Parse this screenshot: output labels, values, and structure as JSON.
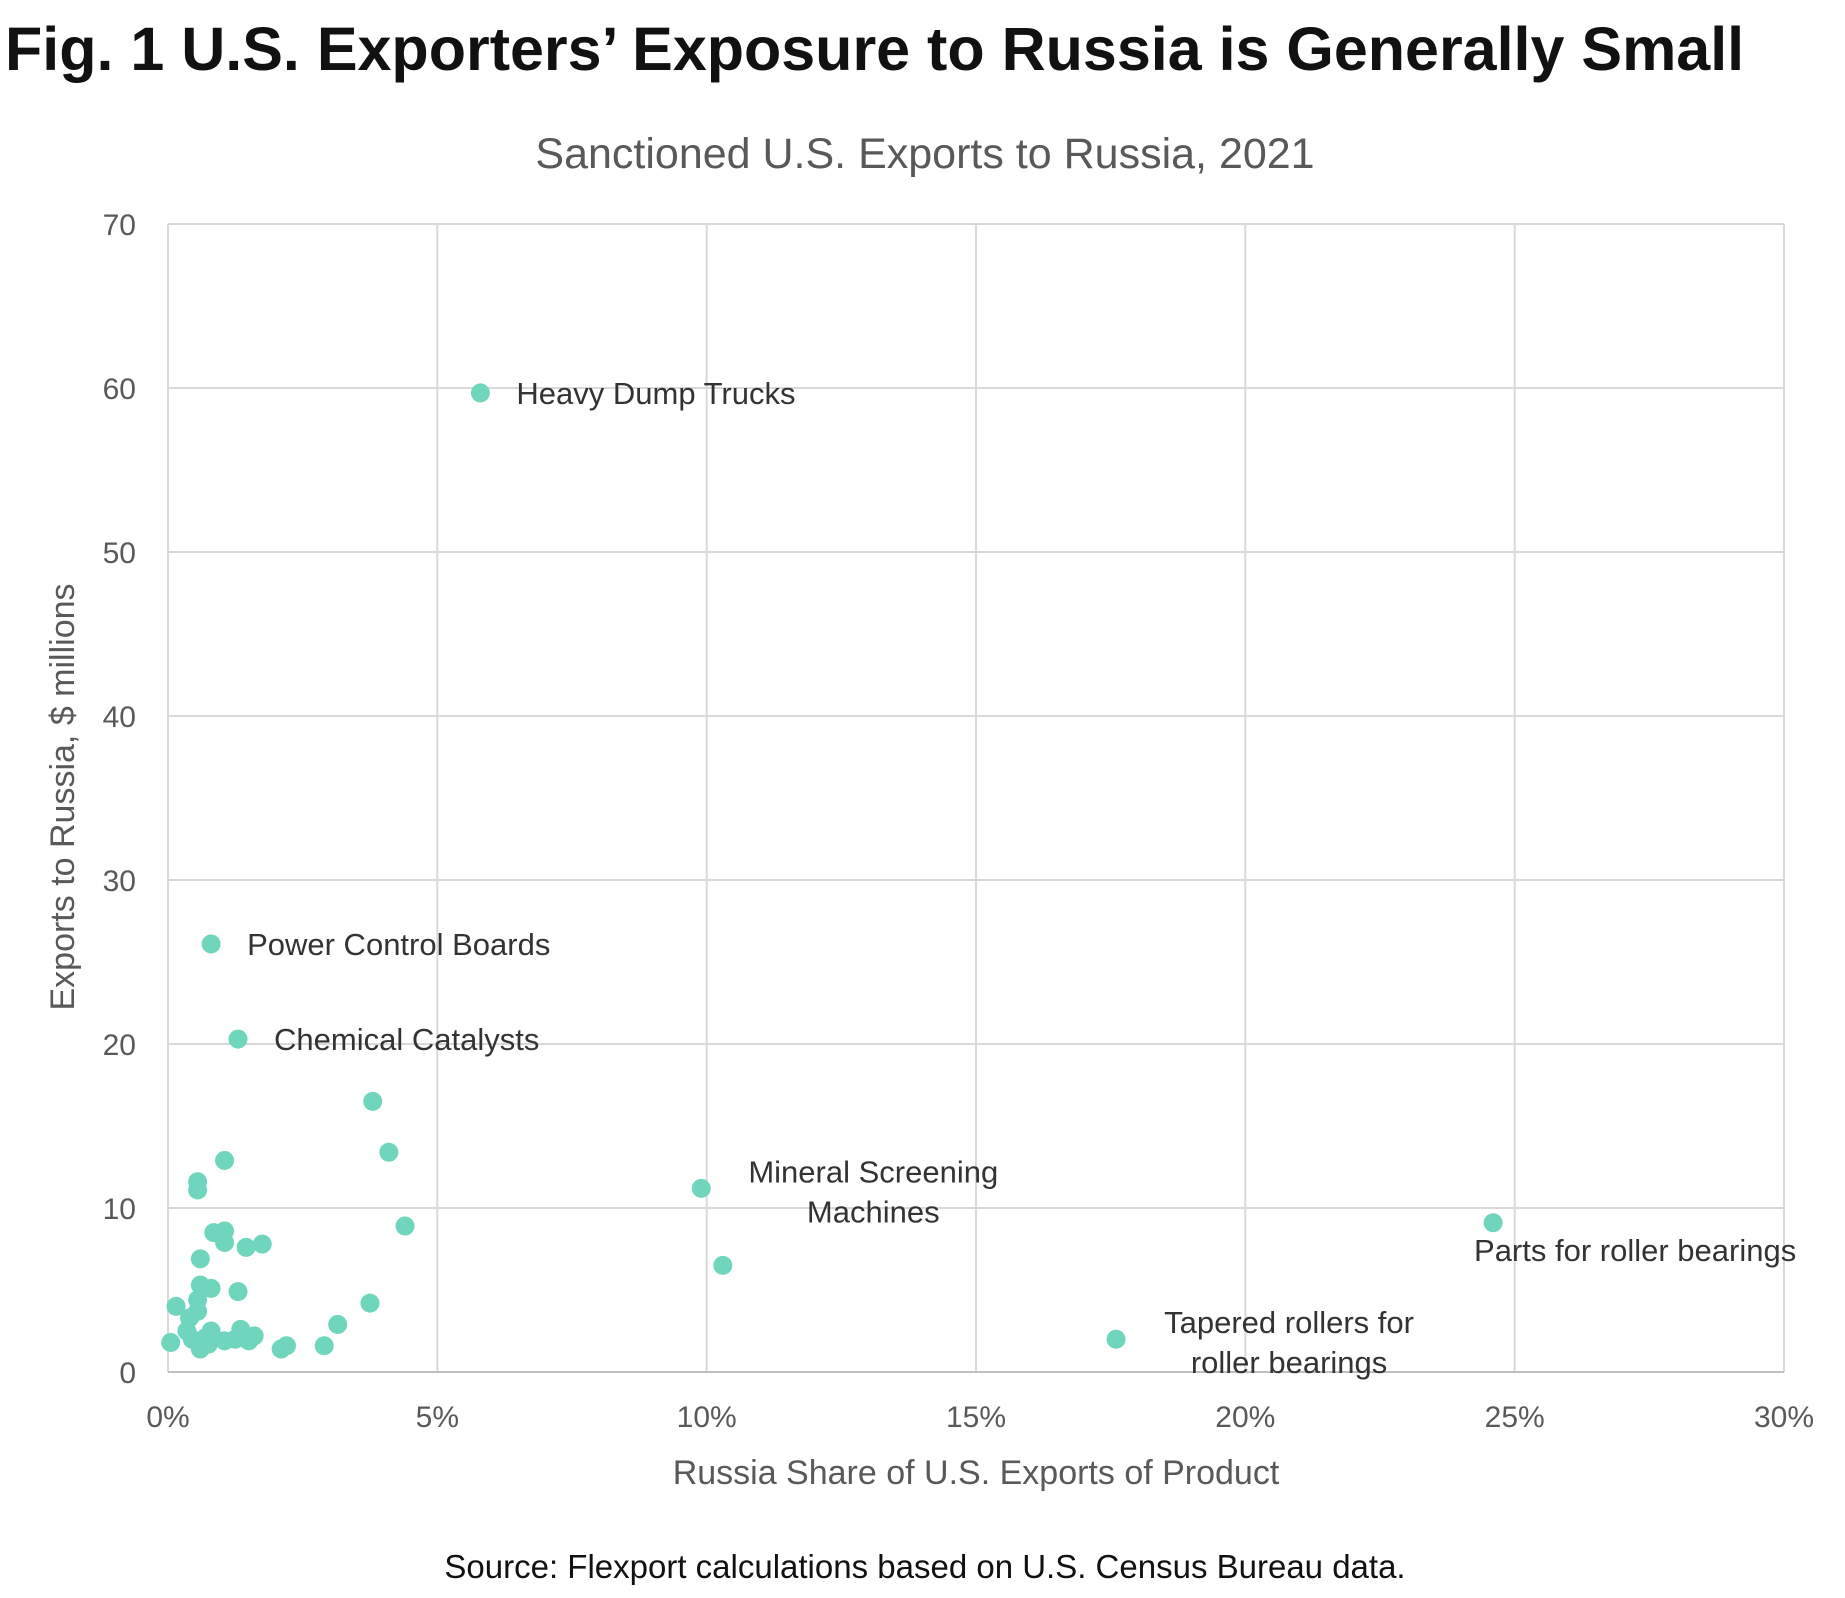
{
  "figure_title": "Fig. 1 U.S. Exporters’ Exposure to Russia is Generally Small",
  "source": "Source: Flexport calculations based on U.S. Census Bureau data.",
  "chart_data": {
    "type": "scatter",
    "title": "Sanctioned U.S. Exports to Russia, 2021",
    "xlabel": "Russia Share of U.S. Exports of Product",
    "ylabel": "Exports to Russia, $ millions",
    "xlim": [
      0,
      30
    ],
    "ylim": [
      0,
      70
    ],
    "x_ticks": [
      0,
      5,
      10,
      15,
      20,
      25,
      30
    ],
    "x_tick_labels": [
      "0%",
      "5%",
      "10%",
      "15%",
      "20%",
      "25%",
      "30%"
    ],
    "y_ticks": [
      0,
      10,
      20,
      30,
      40,
      50,
      60,
      70
    ],
    "y_tick_labels": [
      "0",
      "10",
      "20",
      "30",
      "40",
      "50",
      "60",
      "70"
    ],
    "grid": true,
    "point_color": "#6fd6bd",
    "labeled_points": [
      {
        "label": [
          "Heavy Dump Trucks"
        ],
        "x": 5.8,
        "y": 59.7
      },
      {
        "label": [
          "Power Control Boards"
        ],
        "x": 0.8,
        "y": 26.1
      },
      {
        "label": [
          "Chemical Catalysts"
        ],
        "x": 1.3,
        "y": 20.3
      },
      {
        "label": [
          "Mineral Screening",
          "Machines"
        ],
        "x": 9.9,
        "y": 11.2
      },
      {
        "label": [
          "Parts for roller bearings"
        ],
        "x": 24.6,
        "y": 9.1
      },
      {
        "label": [
          "Tapered rollers for",
          "roller bearings"
        ],
        "x": 17.6,
        "y": 2.0
      }
    ],
    "points": [
      [
        3.8,
        16.5
      ],
      [
        4.1,
        13.4
      ],
      [
        1.05,
        12.9
      ],
      [
        0.55,
        11.6
      ],
      [
        0.55,
        11.1
      ],
      [
        4.4,
        8.9
      ],
      [
        10.3,
        6.5
      ],
      [
        0.85,
        8.5
      ],
      [
        1.05,
        8.6
      ],
      [
        1.05,
        7.9
      ],
      [
        1.45,
        7.6
      ],
      [
        1.75,
        7.8
      ],
      [
        0.6,
        6.9
      ],
      [
        0.6,
        5.3
      ],
      [
        0.8,
        5.1
      ],
      [
        1.3,
        4.9
      ],
      [
        0.55,
        4.4
      ],
      [
        3.75,
        4.2
      ],
      [
        0.15,
        4.0
      ],
      [
        0.55,
        3.7
      ],
      [
        0.4,
        3.3
      ],
      [
        3.15,
        2.9
      ],
      [
        0.35,
        2.5
      ],
      [
        0.8,
        2.5
      ],
      [
        1.35,
        2.6
      ],
      [
        0.45,
        2.0
      ],
      [
        0.6,
        1.6
      ],
      [
        0.7,
        2.1
      ],
      [
        1.05,
        1.9
      ],
      [
        1.25,
        2.0
      ],
      [
        1.5,
        1.9
      ],
      [
        1.6,
        2.2
      ],
      [
        0.05,
        1.8
      ],
      [
        0.75,
        1.7
      ],
      [
        2.2,
        1.6
      ],
      [
        2.1,
        1.4
      ],
      [
        2.9,
        1.6
      ],
      [
        0.6,
        1.4
      ]
    ]
  }
}
